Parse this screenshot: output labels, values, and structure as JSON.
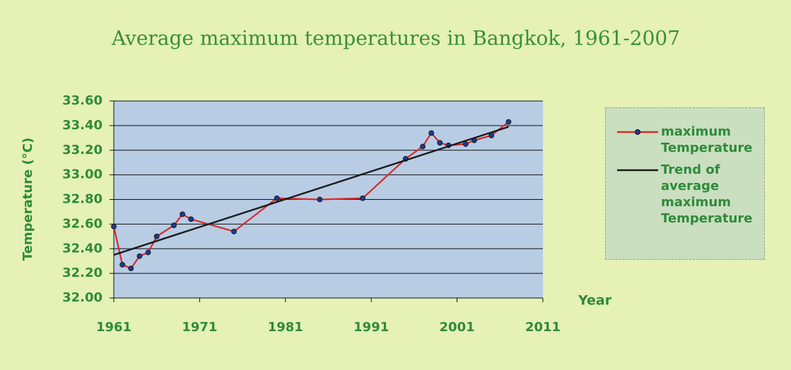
{
  "chart_data": {
    "type": "line",
    "title": "Average maximum temperatures in Bangkok, 1961-2007",
    "x_label": "Year",
    "y_label": "Temperature (°C)",
    "xlim": [
      1961,
      2011
    ],
    "xticks": [
      1961,
      1971,
      1981,
      1991,
      2001,
      2011
    ],
    "ylim": [
      32.0,
      33.6
    ],
    "yticks": [
      {
        "value": 32.0,
        "label": "32.00"
      },
      {
        "value": 32.2,
        "label": "32.20"
      },
      {
        "value": 32.4,
        "label": "32.40"
      },
      {
        "value": 32.6,
        "label": "32.60"
      },
      {
        "value": 32.8,
        "label": "32.80"
      },
      {
        "value": 33.0,
        "label": "33.00"
      },
      {
        "value": 33.2,
        "label": "33.20"
      },
      {
        "value": 33.4,
        "label": "33.40"
      },
      {
        "value": 33.6,
        "label": "33.60"
      }
    ],
    "grid": true,
    "legend": "right",
    "series": [
      {
        "name": "maximum Temperature",
        "color": "#d62b2b",
        "markers": true,
        "x": [
          1961,
          1962,
          1963,
          1964,
          1965,
          1966,
          1968,
          1969,
          1970,
          1975,
          1980,
          1985,
          1990,
          1995,
          1997,
          1998,
          1999,
          2000,
          2002,
          2003,
          2005,
          2007
        ],
        "values": [
          32.58,
          32.27,
          32.24,
          32.34,
          32.37,
          32.5,
          32.59,
          32.68,
          32.64,
          32.54,
          32.81,
          32.8,
          32.81,
          33.13,
          33.23,
          33.34,
          33.26,
          33.24,
          33.25,
          33.28,
          33.32,
          33.43
        ]
      },
      {
        "name": "Trend of average maximum Temperature",
        "color": "#1a1a1a",
        "markers": false,
        "x": [
          1961,
          2007
        ],
        "values": [
          32.35,
          33.39
        ]
      }
    ]
  }
}
